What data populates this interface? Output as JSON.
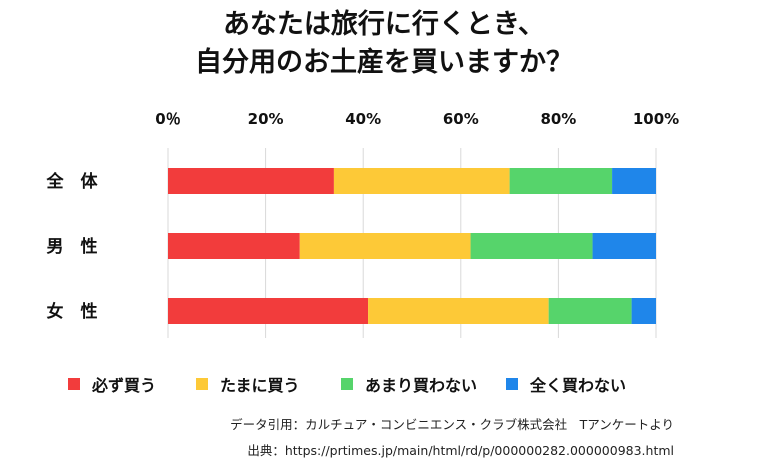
{
  "title": {
    "line1": "あなたは旅行に行くとき、",
    "line2": "自分用のお土産を買いますか？"
  },
  "chart_data": {
    "type": "bar",
    "orientation": "horizontal",
    "stacked": true,
    "categories": [
      "全　体",
      "男　性",
      "女　性"
    ],
    "series": [
      {
        "name": "必ず買う",
        "color": "#f23c3c",
        "values": [
          34,
          27,
          41
        ]
      },
      {
        "name": "たまに買う",
        "color": "#fdc937",
        "values": [
          36,
          35,
          37
        ]
      },
      {
        "name": "あまり買わない",
        "color": "#56d46b",
        "values": [
          21,
          25,
          17
        ]
      },
      {
        "name": "全く買わない",
        "color": "#1f86ea",
        "values": [
          9,
          13,
          5
        ]
      }
    ],
    "x_ticks": [
      "0％",
      "20%",
      "40%",
      "60%",
      "80%",
      "100%"
    ],
    "xlim": [
      0,
      100
    ],
    "grid": true,
    "legend_position": "bottom"
  },
  "footer": {
    "credit": "データ引用：カルチュア・コンビニエンス・クラブ株式会社　Tアンケートより",
    "source": "出典：https://prtimes.jp/main/html/rd/p/000000282.000000983.html"
  }
}
